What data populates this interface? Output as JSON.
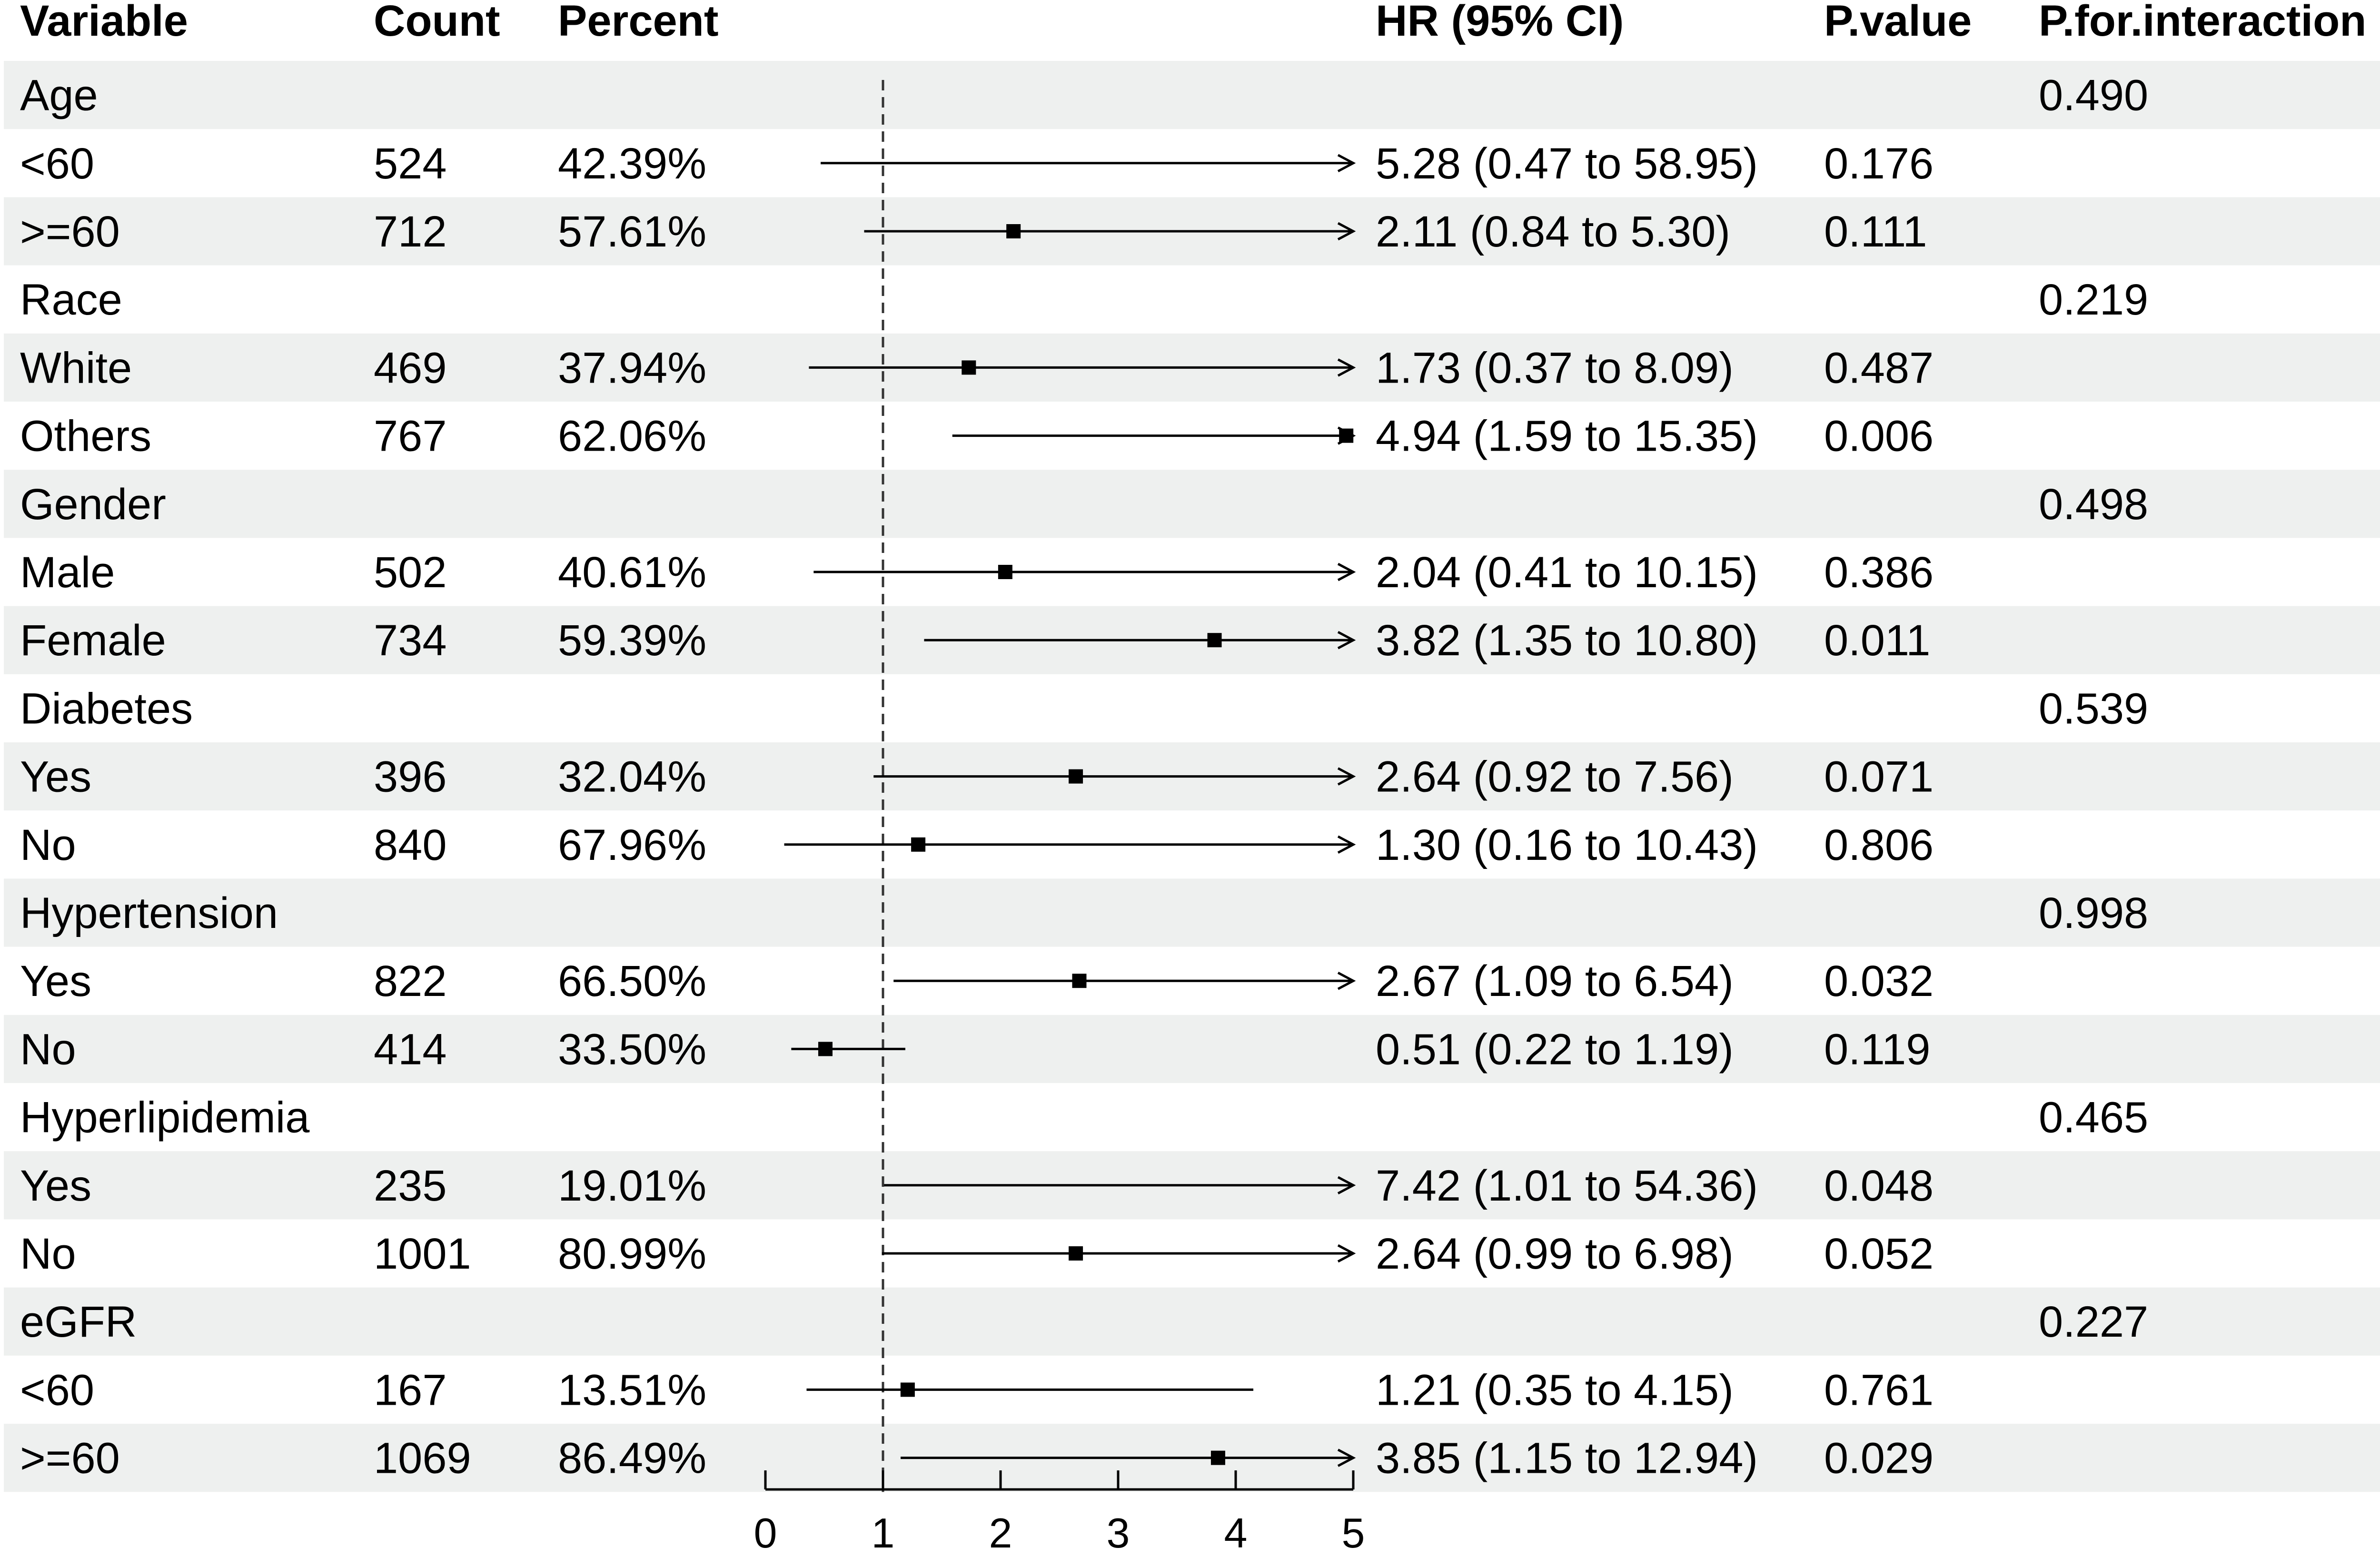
{
  "headers": {
    "variable": "Variable",
    "count": "Count",
    "percent": "Percent",
    "hr": "HR (95% CI)",
    "pvalue": "P.value",
    "pinter": "P.for.interaction"
  },
  "rows": [
    {
      "variable": "Age",
      "count": "",
      "percent": "",
      "hr_text": "",
      "pvalue": "",
      "pinter": "0.490",
      "shaded": true,
      "group": true
    },
    {
      "variable": "<60",
      "count": "524",
      "percent": "42.39%",
      "hr_text": "5.28 (0.47 to 58.95)",
      "pvalue": "0.176",
      "pinter": "",
      "shaded": false
    },
    {
      "variable": ">=60",
      "count": "712",
      "percent": "57.61%",
      "hr_text": "2.11 (0.84 to 5.30)",
      "pvalue": "0.111",
      "pinter": "",
      "shaded": true
    },
    {
      "variable": "Race",
      "count": "",
      "percent": "",
      "hr_text": "",
      "pvalue": "",
      "pinter": "0.219",
      "shaded": false,
      "group": true
    },
    {
      "variable": "White",
      "count": "469",
      "percent": "37.94%",
      "hr_text": "1.73 (0.37 to 8.09)",
      "pvalue": "0.487",
      "pinter": "",
      "shaded": true
    },
    {
      "variable": "Others",
      "count": "767",
      "percent": "62.06%",
      "hr_text": "4.94 (1.59 to 15.35)",
      "pvalue": "0.006",
      "pinter": "",
      "shaded": false
    },
    {
      "variable": "Gender",
      "count": "",
      "percent": "",
      "hr_text": "",
      "pvalue": "",
      "pinter": "0.498",
      "shaded": true,
      "group": true
    },
    {
      "variable": "Male",
      "count": "502",
      "percent": "40.61%",
      "hr_text": "2.04 (0.41 to 10.15)",
      "pvalue": "0.386",
      "pinter": "",
      "shaded": false
    },
    {
      "variable": "Female",
      "count": "734",
      "percent": "59.39%",
      "hr_text": "3.82 (1.35 to 10.80)",
      "pvalue": "0.011",
      "pinter": "",
      "shaded": true
    },
    {
      "variable": "Diabetes",
      "count": "",
      "percent": "",
      "hr_text": "",
      "pvalue": "",
      "pinter": "0.539",
      "shaded": false,
      "group": true
    },
    {
      "variable": "Yes",
      "count": "396",
      "percent": "32.04%",
      "hr_text": "2.64 (0.92 to 7.56)",
      "pvalue": "0.071",
      "pinter": "",
      "shaded": true
    },
    {
      "variable": "No",
      "count": "840",
      "percent": "67.96%",
      "hr_text": "1.30 (0.16 to 10.43)",
      "pvalue": "0.806",
      "pinter": "",
      "shaded": false
    },
    {
      "variable": "Hypertension",
      "count": "",
      "percent": "",
      "hr_text": "",
      "pvalue": "",
      "pinter": "0.998",
      "shaded": true,
      "group": true
    },
    {
      "variable": "Yes",
      "count": "822",
      "percent": "66.50%",
      "hr_text": "2.67 (1.09 to 6.54)",
      "pvalue": "0.032",
      "pinter": "",
      "shaded": false
    },
    {
      "variable": "No",
      "count": "414",
      "percent": "33.50%",
      "hr_text": "0.51 (0.22 to 1.19)",
      "pvalue": "0.119",
      "pinter": "",
      "shaded": true
    },
    {
      "variable": "Hyperlipidemia",
      "count": "",
      "percent": "",
      "hr_text": "",
      "pvalue": "",
      "pinter": "0.465",
      "shaded": false,
      "group": true
    },
    {
      "variable": "Yes",
      "count": "235",
      "percent": "19.01%",
      "hr_text": "7.42 (1.01 to 54.36)",
      "pvalue": "0.048",
      "pinter": "",
      "shaded": true
    },
    {
      "variable": "No",
      "count": "1001",
      "percent": "80.99%",
      "hr_text": "2.64 (0.99 to 6.98)",
      "pvalue": "0.052",
      "pinter": "",
      "shaded": false
    },
    {
      "variable": "eGFR",
      "count": "",
      "percent": "",
      "hr_text": "",
      "pvalue": "",
      "pinter": "0.227",
      "shaded": true,
      "group": true
    },
    {
      "variable": "<60",
      "count": "167",
      "percent": "13.51%",
      "hr_text": "1.21 (0.35 to 4.15)",
      "pvalue": "0.761",
      "pinter": "",
      "shaded": false
    },
    {
      "variable": ">=60",
      "count": "1069",
      "percent": "86.49%",
      "hr_text": "3.85 (1.15 to 12.94)",
      "pvalue": "0.029",
      "pinter": "",
      "shaded": true
    }
  ],
  "chart_data": {
    "type": "forest",
    "xlim": [
      0,
      5
    ],
    "xticks": [
      0,
      1,
      2,
      3,
      4,
      5
    ],
    "reference_line": 1,
    "grid": false,
    "colors": {
      "shade": "#eef0ef",
      "ink": "#000000"
    },
    "estimates": [
      null,
      {
        "hr": 5.28,
        "lower": 0.47,
        "upper": 58.95
      },
      {
        "hr": 2.11,
        "lower": 0.84,
        "upper": 5.3
      },
      null,
      {
        "hr": 1.73,
        "lower": 0.37,
        "upper": 8.09
      },
      {
        "hr": 4.94,
        "lower": 1.59,
        "upper": 15.35
      },
      null,
      {
        "hr": 2.04,
        "lower": 0.41,
        "upper": 10.15
      },
      {
        "hr": 3.82,
        "lower": 1.35,
        "upper": 10.8
      },
      null,
      {
        "hr": 2.64,
        "lower": 0.92,
        "upper": 7.56
      },
      {
        "hr": 1.3,
        "lower": 0.16,
        "upper": 10.43
      },
      null,
      {
        "hr": 2.67,
        "lower": 1.09,
        "upper": 6.54
      },
      {
        "hr": 0.51,
        "lower": 0.22,
        "upper": 1.19
      },
      null,
      {
        "hr": 7.42,
        "lower": 1.01,
        "upper": 54.36
      },
      {
        "hr": 2.64,
        "lower": 0.99,
        "upper": 6.98
      },
      null,
      {
        "hr": 1.21,
        "lower": 0.35,
        "upper": 4.15
      },
      {
        "hr": 3.85,
        "lower": 1.15,
        "upper": 12.94
      }
    ]
  }
}
